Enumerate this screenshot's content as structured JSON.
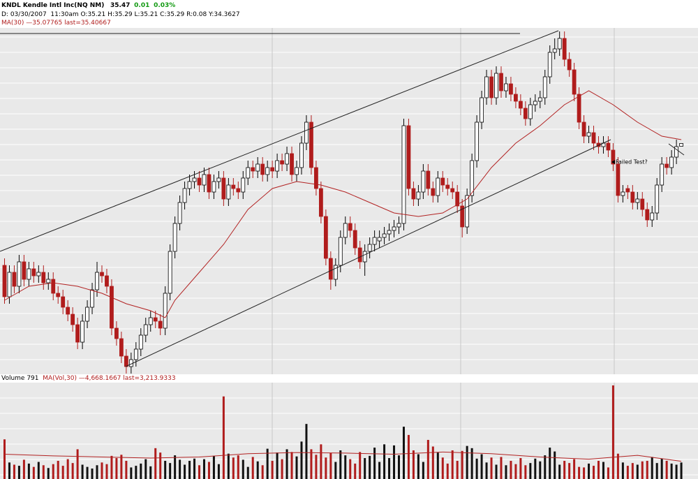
{
  "header": {
    "symbol": "KNDL Kendle Intl Inc(NQ NM)",
    "last": "35.47",
    "change": "0.01",
    "change_pct": "0.03%",
    "bar": "D: 03/30/2007  11:30am O:35.21 H:35.29 L:35.21 C:35.29 R:0.08 Y:34.3627"
  },
  "chart_data": [
    {
      "type": "candlestick",
      "ylim": [
        28.7,
        38.6
      ],
      "xlim": [
        -0.5,
        142
      ],
      "up_color": "#ffffff",
      "down_color": "#b01c1c",
      "annotation": "Failed Test?",
      "ohlc": [
        [
          31.8,
          32.0,
          30.7,
          30.9
        ],
        [
          30.9,
          31.8,
          30.7,
          31.6
        ],
        [
          31.6,
          31.8,
          31.0,
          31.2
        ],
        [
          31.2,
          32.1,
          31.0,
          31.9
        ],
        [
          31.9,
          32.1,
          31.2,
          31.4
        ],
        [
          31.4,
          31.9,
          31.2,
          31.7
        ],
        [
          31.7,
          31.9,
          31.3,
          31.5
        ],
        [
          31.5,
          31.8,
          31.3,
          31.6
        ],
        [
          31.6,
          31.8,
          31.1,
          31.3
        ],
        [
          31.3,
          31.6,
          31.1,
          31.4
        ],
        [
          31.4,
          31.6,
          30.8,
          31.0
        ],
        [
          31.0,
          31.2,
          30.7,
          30.9
        ],
        [
          30.9,
          31.1,
          30.4,
          30.6
        ],
        [
          30.6,
          30.8,
          30.2,
          30.4
        ],
        [
          30.4,
          30.6,
          29.9,
          30.1
        ],
        [
          30.1,
          30.3,
          29.4,
          29.6
        ],
        [
          29.6,
          30.4,
          29.4,
          30.2
        ],
        [
          30.2,
          30.8,
          30.0,
          30.6
        ],
        [
          30.6,
          31.3,
          30.4,
          31.1
        ],
        [
          31.1,
          31.9,
          30.9,
          31.6
        ],
        [
          31.6,
          31.8,
          31.3,
          31.5
        ],
        [
          31.5,
          31.7,
          31.0,
          31.2
        ],
        [
          31.2,
          31.4,
          29.8,
          30.0
        ],
        [
          30.0,
          30.2,
          29.5,
          29.7
        ],
        [
          29.7,
          29.9,
          29.0,
          29.2
        ],
        [
          29.2,
          29.4,
          28.7,
          28.9
        ],
        [
          28.9,
          29.3,
          28.7,
          29.1
        ],
        [
          29.1,
          29.6,
          28.9,
          29.4
        ],
        [
          29.4,
          30.0,
          29.2,
          29.8
        ],
        [
          29.8,
          30.3,
          29.6,
          30.1
        ],
        [
          30.1,
          30.5,
          29.9,
          30.3
        ],
        [
          30.3,
          30.5,
          30.0,
          30.2
        ],
        [
          30.2,
          30.4,
          29.8,
          30.0
        ],
        [
          30.0,
          31.2,
          29.8,
          31.0
        ],
        [
          31.0,
          32.4,
          30.8,
          32.2
        ],
        [
          32.2,
          33.2,
          32.0,
          33.0
        ],
        [
          33.0,
          33.8,
          32.8,
          33.6
        ],
        [
          33.6,
          34.2,
          33.4,
          34.0
        ],
        [
          34.0,
          34.4,
          33.8,
          34.2
        ],
        [
          34.2,
          34.5,
          34.0,
          34.3
        ],
        [
          34.3,
          34.5,
          33.9,
          34.1
        ],
        [
          34.1,
          34.6,
          33.9,
          34.4
        ],
        [
          34.4,
          34.6,
          33.7,
          33.9
        ],
        [
          33.9,
          34.4,
          33.7,
          34.2
        ],
        [
          34.2,
          34.5,
          34.0,
          34.3
        ],
        [
          34.3,
          34.5,
          33.5,
          33.7
        ],
        [
          33.7,
          34.3,
          33.5,
          34.1
        ],
        [
          34.1,
          34.3,
          33.8,
          34.0
        ],
        [
          34.0,
          34.2,
          33.7,
          33.9
        ],
        [
          33.9,
          34.5,
          33.7,
          34.3
        ],
        [
          34.3,
          34.8,
          34.1,
          34.6
        ],
        [
          34.6,
          34.8,
          34.3,
          34.5
        ],
        [
          34.5,
          34.9,
          34.3,
          34.7
        ],
        [
          34.7,
          34.9,
          34.2,
          34.4
        ],
        [
          34.4,
          34.8,
          34.2,
          34.6
        ],
        [
          34.6,
          34.8,
          34.3,
          34.5
        ],
        [
          34.5,
          35.0,
          34.3,
          34.8
        ],
        [
          34.8,
          35.0,
          34.5,
          34.7
        ],
        [
          34.7,
          35.2,
          34.5,
          35.0
        ],
        [
          35.0,
          35.2,
          34.2,
          34.4
        ],
        [
          34.4,
          34.8,
          34.2,
          34.6
        ],
        [
          34.6,
          35.5,
          34.4,
          35.3
        ],
        [
          35.3,
          36.1,
          35.1,
          35.9
        ],
        [
          35.9,
          36.1,
          34.4,
          34.6
        ],
        [
          34.6,
          34.8,
          33.8,
          34.0
        ],
        [
          34.0,
          34.2,
          33.0,
          33.2
        ],
        [
          33.2,
          33.4,
          31.8,
          32.0
        ],
        [
          32.0,
          32.2,
          31.1,
          31.4
        ],
        [
          31.4,
          32.0,
          31.2,
          31.8
        ],
        [
          31.8,
          32.8,
          31.6,
          32.6
        ],
        [
          32.6,
          33.2,
          32.4,
          33.0
        ],
        [
          33.0,
          33.2,
          32.6,
          32.8
        ],
        [
          32.8,
          33.0,
          32.1,
          32.3
        ],
        [
          32.3,
          32.5,
          31.7,
          31.9
        ],
        [
          31.9,
          32.4,
          31.5,
          32.2
        ],
        [
          32.2,
          32.6,
          32.0,
          32.4
        ],
        [
          32.4,
          32.8,
          32.2,
          32.6
        ],
        [
          32.5,
          32.8,
          32.3,
          32.6
        ],
        [
          32.6,
          32.9,
          32.4,
          32.7
        ],
        [
          32.7,
          33.0,
          32.5,
          32.8
        ],
        [
          32.8,
          33.1,
          32.6,
          32.9
        ],
        [
          32.9,
          33.2,
          32.7,
          33.0
        ],
        [
          33.0,
          36.0,
          32.8,
          35.8
        ],
        [
          35.8,
          36.0,
          33.8,
          34.0
        ],
        [
          34.0,
          34.2,
          33.5,
          33.7
        ],
        [
          33.7,
          34.1,
          33.5,
          33.9
        ],
        [
          33.9,
          34.7,
          33.7,
          34.5
        ],
        [
          34.5,
          34.7,
          33.8,
          34.0
        ],
        [
          34.0,
          34.2,
          33.6,
          33.8
        ],
        [
          33.8,
          34.5,
          33.6,
          34.3
        ],
        [
          34.3,
          34.5,
          33.9,
          34.1
        ],
        [
          34.1,
          34.3,
          33.8,
          34.0
        ],
        [
          34.0,
          34.2,
          33.7,
          33.9
        ],
        [
          33.9,
          34.1,
          33.3,
          33.5
        ],
        [
          33.5,
          33.7,
          32.6,
          32.9
        ],
        [
          32.9,
          34.0,
          32.7,
          33.8
        ],
        [
          33.8,
          35.0,
          33.6,
          34.8
        ],
        [
          34.8,
          36.1,
          34.6,
          35.9
        ],
        [
          35.9,
          36.8,
          35.7,
          36.6
        ],
        [
          36.6,
          37.4,
          36.4,
          37.2
        ],
        [
          37.2,
          37.4,
          36.4,
          36.6
        ],
        [
          36.6,
          37.5,
          36.4,
          37.3
        ],
        [
          37.3,
          37.5,
          36.6,
          36.8
        ],
        [
          36.8,
          37.2,
          36.6,
          37.0
        ],
        [
          37.0,
          37.2,
          36.5,
          36.7
        ],
        [
          36.7,
          36.9,
          36.3,
          36.5
        ],
        [
          36.5,
          36.7,
          36.1,
          36.3
        ],
        [
          36.3,
          36.5,
          35.8,
          36.0
        ],
        [
          36.0,
          36.6,
          35.8,
          36.4
        ],
        [
          36.4,
          36.7,
          36.2,
          36.5
        ],
        [
          36.5,
          36.8,
          36.3,
          36.6
        ],
        [
          36.6,
          37.4,
          36.4,
          37.2
        ],
        [
          37.2,
          38.1,
          37.0,
          37.9
        ],
        [
          37.9,
          38.3,
          37.7,
          38.0
        ],
        [
          38.0,
          38.5,
          37.8,
          38.3
        ],
        [
          38.3,
          38.5,
          37.5,
          37.7
        ],
        [
          37.7,
          37.9,
          37.2,
          37.4
        ],
        [
          37.4,
          37.6,
          36.5,
          36.7
        ],
        [
          36.7,
          36.9,
          35.7,
          35.9
        ],
        [
          35.9,
          36.1,
          35.3,
          35.5
        ],
        [
          35.5,
          35.8,
          35.3,
          35.6
        ],
        [
          35.6,
          35.8,
          35.1,
          35.3
        ],
        [
          35.3,
          35.5,
          35.0,
          35.2
        ],
        [
          35.2,
          35.5,
          35.0,
          35.3
        ],
        [
          35.3,
          35.5,
          34.9,
          35.1
        ],
        [
          35.1,
          35.3,
          34.5,
          34.7
        ],
        [
          34.7,
          34.9,
          33.6,
          33.8
        ],
        [
          33.8,
          34.1,
          33.6,
          33.9
        ],
        [
          34.0,
          34.1,
          33.7,
          33.9
        ],
        [
          33.9,
          34.1,
          33.4,
          33.6
        ],
        [
          33.6,
          33.9,
          33.4,
          33.7
        ],
        [
          33.7,
          33.9,
          33.2,
          33.4
        ],
        [
          33.4,
          33.6,
          32.9,
          33.1
        ],
        [
          33.1,
          33.5,
          32.9,
          33.3
        ],
        [
          33.3,
          34.3,
          33.1,
          34.1
        ],
        [
          34.1,
          34.9,
          33.9,
          34.7
        ],
        [
          34.7,
          34.9,
          34.4,
          34.6
        ],
        [
          34.6,
          35.1,
          34.4,
          34.9
        ],
        [
          34.9,
          35.4,
          34.7,
          35.2
        ],
        [
          35.21,
          35.29,
          35.21,
          35.29
        ]
      ],
      "ma": {
        "name": "MA(30)",
        "label": "—35.07765 last=35.40667",
        "color": "#b22222",
        "x": [
          0,
          5,
          10,
          15,
          20,
          25,
          30,
          33,
          35,
          40,
          45,
          50,
          55,
          60,
          65,
          70,
          75,
          80,
          85,
          90,
          95,
          100,
          105,
          110,
          115,
          120,
          125,
          130,
          135,
          139
        ],
        "values": [
          30.8,
          31.2,
          31.3,
          31.2,
          31.0,
          30.7,
          30.5,
          30.3,
          30.8,
          31.6,
          32.4,
          33.4,
          34.0,
          34.2,
          34.1,
          33.9,
          33.6,
          33.3,
          33.2,
          33.3,
          33.7,
          34.6,
          35.3,
          35.8,
          36.4,
          36.8,
          36.4,
          35.9,
          35.5,
          35.4
        ]
      }
    },
    {
      "type": "bar",
      "title": "Volume 791",
      "ylim": [
        0,
        17500
      ],
      "xlim": [
        -0.5,
        142
      ],
      "values": [
        7200,
        3000,
        2600,
        2400,
        3500,
        2800,
        2200,
        3100,
        2500,
        2000,
        2700,
        3300,
        2400,
        3600,
        2900,
        5400,
        2600,
        2200,
        1900,
        2500,
        3000,
        2700,
        4200,
        3800,
        4400,
        3300,
        2100,
        2400,
        2800,
        3600,
        2300,
        5600,
        4800,
        3300,
        2900,
        4300,
        3500,
        2600,
        3300,
        3700,
        2500,
        3600,
        3100,
        4200,
        2700,
        15000,
        4600,
        3900,
        4300,
        3500,
        2200,
        4000,
        3200,
        2500,
        5500,
        3300,
        4800,
        3600,
        5400,
        4900,
        4100,
        6800,
        10000,
        5400,
        4400,
        6300,
        3900,
        4700,
        3100,
        5200,
        4300,
        3600,
        2800,
        4900,
        3800,
        4200,
        5700,
        3100,
        6300,
        3800,
        6100,
        4300,
        9500,
        8000,
        5200,
        4500,
        3100,
        7100,
        5900,
        4800,
        3900,
        2800,
        5200,
        3300,
        5100,
        6000,
        5600,
        3700,
        4500,
        3000,
        3900,
        2600,
        4000,
        2500,
        3300,
        2700,
        3800,
        2500,
        2900,
        3700,
        3200,
        4300,
        5700,
        5000,
        2600,
        3300,
        2900,
        3600,
        2200,
        2100,
        2800,
        2400,
        3300,
        3100,
        2100,
        17000,
        4600,
        3000,
        2400,
        2900,
        2600,
        3200,
        3300,
        4000,
        2900,
        3700,
        3300,
        2800,
        2600,
        3000
      ],
      "ma": {
        "name": "MA(Vol,30)",
        "label": "—4,668.1667 last=3,213.9333",
        "color": "#b22222",
        "x": [
          0,
          10,
          20,
          30,
          40,
          50,
          60,
          70,
          80,
          90,
          100,
          110,
          120,
          130,
          139
        ],
        "values": [
          4500,
          4200,
          4000,
          3800,
          4000,
          4600,
          4800,
          4700,
          4500,
          4900,
          4600,
          4000,
          3600,
          4300,
          3214
        ]
      }
    }
  ]
}
